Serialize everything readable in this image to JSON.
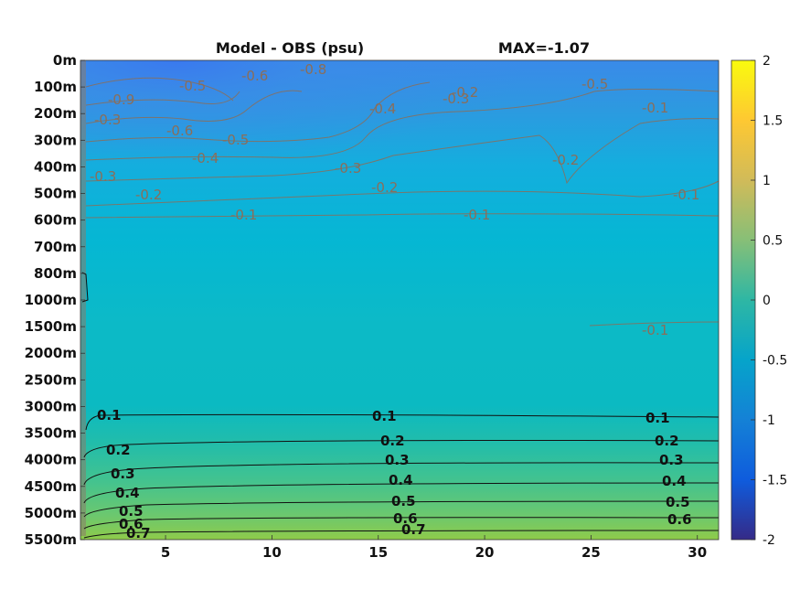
{
  "title": {
    "left": "Model - OBS (psu)",
    "right": "MAX=-1.07"
  },
  "chart_data": {
    "type": "heatmap",
    "y_ticks": [
      "0m",
      "100m",
      "200m",
      "300m",
      "400m",
      "500m",
      "600m",
      "700m",
      "800m",
      "1000m",
      "1500m",
      "2000m",
      "2500m",
      "3000m",
      "3500m",
      "4000m",
      "4500m",
      "5000m",
      "5500m"
    ],
    "x_ticks": [
      5,
      10,
      15,
      20,
      25,
      30
    ],
    "xlim": [
      1,
      31
    ],
    "colorbar": {
      "ticks": [
        2,
        1.5,
        1,
        0.5,
        0,
        -0.5,
        -1,
        -1.5,
        -2
      ],
      "range": [
        -2,
        2
      ],
      "colormap": "parula"
    },
    "negative_contour_labels": [
      "-0.9",
      "-0.8",
      "-0.6",
      "-0.5",
      "-0.3",
      "-0.5",
      "-0.6",
      "-0.5",
      "-0.4",
      "-0.4",
      "-0.3",
      "-0.3",
      "-0.2",
      "-0.2",
      "-0.3",
      "-0.2",
      "-0.1",
      "-0.1",
      "-0.1",
      "-0.1",
      "-0.1",
      "-0.2"
    ],
    "positive_contour_labels": [
      "0.1",
      "0.1",
      "0.1",
      "0.2",
      "0.2",
      "0.2",
      "0.3",
      "0.3",
      "0.3",
      "0.4",
      "0.4",
      "0.4",
      "0.5",
      "0.5",
      "0.5",
      "0.6",
      "0.6",
      "0.6",
      "0.7",
      "0.7"
    ],
    "colors": {
      "contour_negative": "#8a6e5a",
      "contour_positive": "#111111"
    }
  }
}
